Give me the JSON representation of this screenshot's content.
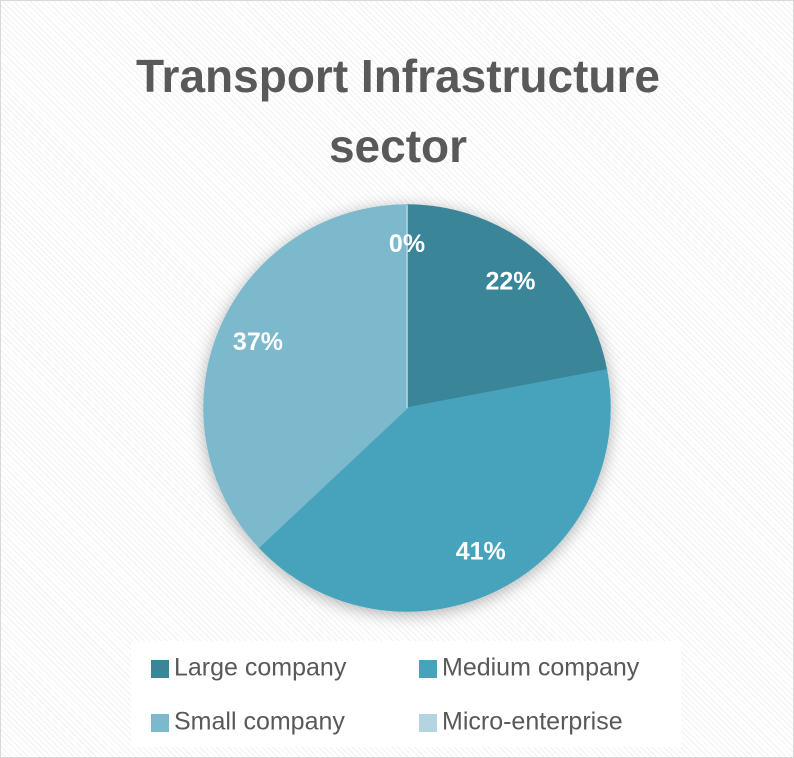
{
  "chart_data": {
    "type": "pie",
    "title": "Transport Infrastructure sector",
    "categories": [
      "Large company",
      "Medium company",
      "Small company",
      "Micro-enterprise"
    ],
    "values": [
      22,
      41,
      37,
      0
    ],
    "value_labels": [
      "22%",
      "41%",
      "37%",
      "0%"
    ],
    "colors": [
      "#3b8599",
      "#47a3bb",
      "#7cb9cd",
      "#b3d4e0"
    ],
    "legend": "bottom"
  }
}
